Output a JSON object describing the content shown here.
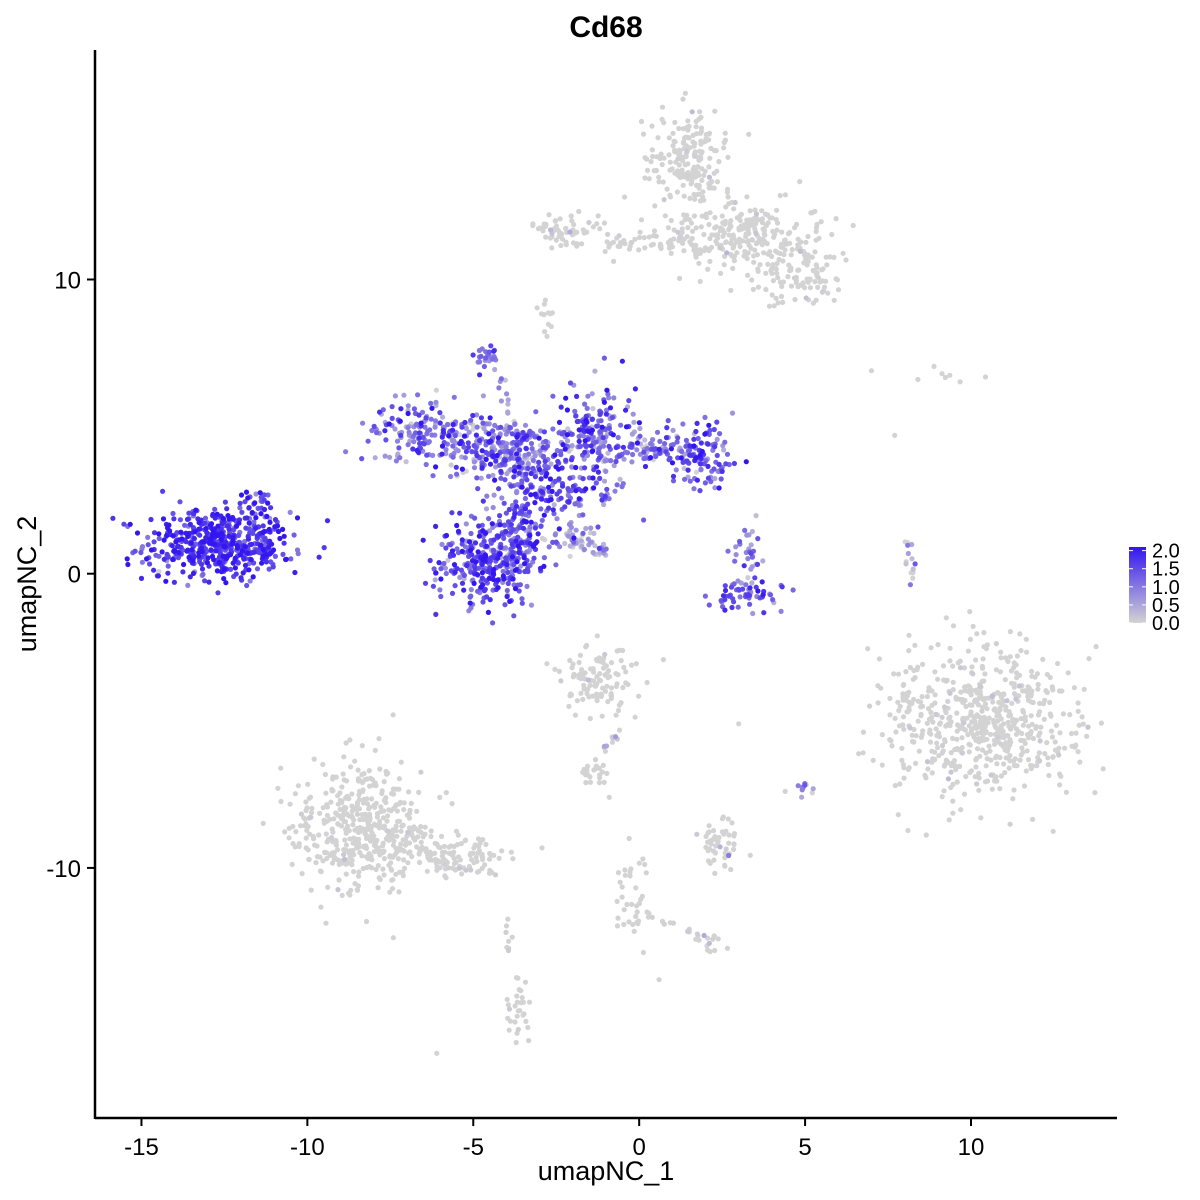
{
  "chart_data": {
    "type": "scatter",
    "title": "Cd68",
    "xlabel": "umapNC_1",
    "ylabel": "umapNC_2",
    "xlim": [
      -16.4,
      14.4
    ],
    "ylim": [
      -18.5,
      17.8
    ],
    "x_ticks": [
      {
        "value": -15,
        "label": "-15"
      },
      {
        "value": -10,
        "label": "-10"
      },
      {
        "value": -5,
        "label": "-5"
      },
      {
        "value": 0,
        "label": "0"
      },
      {
        "value": 5,
        "label": "5"
      },
      {
        "value": 10,
        "label": "10"
      }
    ],
    "y_ticks": [
      {
        "value": 10,
        "label": "10"
      },
      {
        "value": 0,
        "label": "0"
      },
      {
        "value": -10,
        "label": "-10"
      }
    ],
    "grid": false,
    "color_scale": {
      "low": "#d3d3d3",
      "high": "#3316f0",
      "min": 0.0,
      "max": 2.1,
      "ticks": [
        {
          "value": 2.0,
          "label": "2.0"
        },
        {
          "value": 1.5,
          "label": "1.5"
        },
        {
          "value": 1.0,
          "label": "1.0"
        },
        {
          "value": 0.5,
          "label": "0.5"
        },
        {
          "value": 0.0,
          "label": "0.0"
        }
      ],
      "legend_position": "right"
    },
    "clusters": [
      {
        "cx": -12.7,
        "cy": 1.0,
        "sx": 1.1,
        "sy": 0.6,
        "n": 520,
        "expr": 1.7,
        "spread": 0.4
      },
      {
        "cx": -11.6,
        "cy": 2.2,
        "sx": 0.3,
        "sy": 0.4,
        "n": 30,
        "expr": 1.4,
        "spread": 0.4
      },
      {
        "cx": -4.6,
        "cy": 0.4,
        "sx": 0.75,
        "sy": 0.75,
        "n": 300,
        "expr": 1.5,
        "spread": 0.5
      },
      {
        "cx": -3.6,
        "cy": 1.6,
        "sx": 0.45,
        "sy": 1.0,
        "n": 150,
        "expr": 1.3,
        "spread": 0.5
      },
      {
        "cx": -6.2,
        "cy": 4.8,
        "sx": 1.0,
        "sy": 0.5,
        "n": 200,
        "expr": 1.1,
        "spread": 0.6
      },
      {
        "cx": -3.8,
        "cy": 4.2,
        "sx": 0.9,
        "sy": 0.5,
        "n": 260,
        "expr": 1.0,
        "spread": 0.6
      },
      {
        "cx": -1.3,
        "cy": 4.6,
        "sx": 0.6,
        "sy": 0.9,
        "n": 200,
        "expr": 1.2,
        "spread": 0.6
      },
      {
        "cx": -2.3,
        "cy": 2.7,
        "sx": 0.8,
        "sy": 0.35,
        "n": 90,
        "expr": 1.4,
        "spread": 0.5
      },
      {
        "cx": 0.6,
        "cy": 4.2,
        "sx": 0.8,
        "sy": 0.3,
        "n": 80,
        "expr": 1.0,
        "spread": 0.6
      },
      {
        "cx": 1.9,
        "cy": 3.9,
        "sx": 0.5,
        "sy": 0.55,
        "n": 110,
        "expr": 1.3,
        "spread": 0.5
      },
      {
        "cx": -4.6,
        "cy": 7.3,
        "sx": 0.18,
        "sy": 0.18,
        "n": 25,
        "expr": 1.2,
        "spread": 0.4
      },
      {
        "cx": -2.0,
        "cy": 1.1,
        "sx": 0.5,
        "sy": 0.3,
        "n": 40,
        "expr": 0.7,
        "spread": 0.5
      },
      {
        "cx": 3.2,
        "cy": -0.7,
        "sx": 0.6,
        "sy": 0.25,
        "n": 55,
        "expr": 1.3,
        "spread": 0.4
      },
      {
        "cx": 3.3,
        "cy": 0.7,
        "sx": 0.25,
        "sy": 0.5,
        "n": 35,
        "expr": 0.8,
        "spread": 0.5
      },
      {
        "cx": 1.5,
        "cy": 14.0,
        "sx": 0.6,
        "sy": 0.8,
        "n": 190,
        "expr": 0.05,
        "spread": 0.15
      },
      {
        "cx": 3.2,
        "cy": 11.5,
        "sx": 1.1,
        "sy": 0.6,
        "n": 260,
        "expr": 0.05,
        "spread": 0.15
      },
      {
        "cx": 5.0,
        "cy": 10.0,
        "sx": 0.6,
        "sy": 0.5,
        "n": 80,
        "expr": 0.05,
        "spread": 0.15
      },
      {
        "cx": -2.2,
        "cy": 11.7,
        "sx": 0.6,
        "sy": 0.25,
        "n": 60,
        "expr": 0.05,
        "spread": 0.2
      },
      {
        "cx": 0.3,
        "cy": 11.2,
        "sx": 1.0,
        "sy": 0.15,
        "n": 30,
        "expr": 0.05,
        "spread": 0.2
      },
      {
        "cx": -2.8,
        "cy": 8.6,
        "sx": 0.15,
        "sy": 0.3,
        "n": 12,
        "expr": 0.0,
        "spread": 0.1
      },
      {
        "cx": 10.4,
        "cy": -4.9,
        "sx": 1.3,
        "sy": 1.3,
        "n": 600,
        "expr": 0.03,
        "spread": 0.12
      },
      {
        "cx": 8.1,
        "cy": -4.2,
        "sx": 0.2,
        "sy": 0.6,
        "n": 25,
        "expr": 0.15,
        "spread": 0.3
      },
      {
        "cx": -8.4,
        "cy": -8.6,
        "sx": 1.0,
        "sy": 1.1,
        "n": 450,
        "expr": 0.03,
        "spread": 0.12
      },
      {
        "cx": -5.8,
        "cy": -9.5,
        "sx": 0.9,
        "sy": 0.35,
        "n": 110,
        "expr": 0.0,
        "spread": 0.05
      },
      {
        "cx": -1.2,
        "cy": -3.6,
        "sx": 0.55,
        "sy": 0.55,
        "n": 110,
        "expr": 0.05,
        "spread": 0.15
      },
      {
        "cx": -1.4,
        "cy": -6.8,
        "sx": 0.3,
        "sy": 0.2,
        "n": 20,
        "expr": 0.1,
        "spread": 0.3
      },
      {
        "cx": 2.4,
        "cy": -9.2,
        "sx": 0.3,
        "sy": 0.45,
        "n": 50,
        "expr": 0.1,
        "spread": 0.3
      },
      {
        "cx": -3.6,
        "cy": -15.0,
        "sx": 0.2,
        "sy": 0.6,
        "n": 30,
        "expr": 0.05,
        "spread": 0.1
      },
      {
        "cx": -0.2,
        "cy": -11.0,
        "sx": 0.25,
        "sy": 0.8,
        "n": 35,
        "expr": 0.1,
        "spread": 0.3
      },
      {
        "cx": 2.0,
        "cy": -12.5,
        "sx": 0.3,
        "sy": 0.2,
        "n": 12,
        "expr": 0.1,
        "spread": 0.3
      },
      {
        "cx": 5.0,
        "cy": -7.3,
        "sx": 0.12,
        "sy": 0.15,
        "n": 10,
        "expr": 0.6,
        "spread": 0.6
      },
      {
        "cx": 8.2,
        "cy": 0.4,
        "sx": 0.12,
        "sy": 0.5,
        "n": 14,
        "expr": 0.4,
        "spread": 0.5
      },
      {
        "cx": 9.6,
        "cy": 6.7,
        "sx": 0.5,
        "sy": 0.15,
        "n": 6,
        "expr": 0.0,
        "spread": 0.05
      }
    ],
    "streaks": [
      {
        "x0": -2.3,
        "y0": 1.4,
        "x1": -1.1,
        "y1": 0.6,
        "n": 22,
        "expr": 0.2,
        "spread": 0.4
      },
      {
        "x0": -4.2,
        "y0": 6.8,
        "x1": -3.7,
        "y1": 4.6,
        "n": 14,
        "expr": 0.6,
        "spread": 0.5
      },
      {
        "x0": -1.0,
        "y0": 11.2,
        "x1": 1.6,
        "y1": 11.6,
        "n": 18,
        "expr": 0.0,
        "spread": 0.05
      },
      {
        "x0": -6.4,
        "y0": -9.8,
        "x1": -4.2,
        "y1": -10.2,
        "n": 20,
        "expr": 0.0,
        "spread": 0.05
      },
      {
        "x0": -0.6,
        "y0": -5.4,
        "x1": -1.6,
        "y1": -6.6,
        "n": 12,
        "expr": 0.15,
        "spread": 0.3
      },
      {
        "x0": 0.2,
        "y0": -11.6,
        "x1": 2.2,
        "y1": -12.4,
        "n": 14,
        "expr": 0.0,
        "spread": 0.05
      },
      {
        "x0": -4.0,
        "y0": -11.7,
        "x1": -3.8,
        "y1": -13.6,
        "n": 8,
        "expr": 0.0,
        "spread": 0.05
      }
    ],
    "isolated": [
      [
        7.0,
        6.9
      ],
      [
        8.4,
        6.6
      ],
      [
        7.7,
        4.7
      ],
      [
        -6.1,
        -16.3
      ],
      [
        -0.3,
        -9.0
      ],
      [
        3.0,
        -5.1
      ],
      [
        0.6,
        -13.8
      ],
      [
        4.4,
        -7.4
      ],
      [
        -1.2,
        -7.1
      ],
      [
        -0.9,
        -7.6
      ]
    ]
  }
}
